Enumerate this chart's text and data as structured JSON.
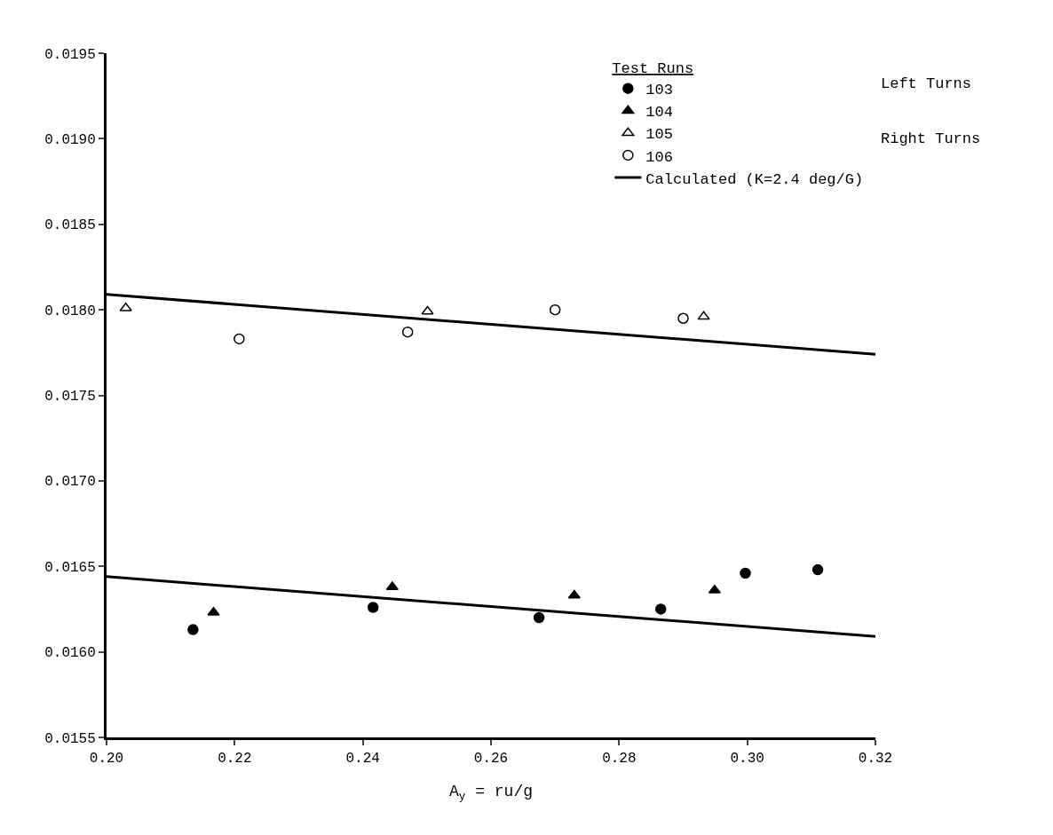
{
  "chart_data": {
    "type": "scatter",
    "xlabel": "A$_{y}$ = ru/g",
    "legend_title": "Test Runs",
    "legend": "top right",
    "grid": false,
    "xlim": [
      0.2,
      0.32
    ],
    "ylim": [
      0.0155,
      0.0195
    ],
    "xticks": [
      {
        "value": 0.2,
        "label": "0.20"
      },
      {
        "value": 0.22,
        "label": "0.22"
      },
      {
        "value": 0.24,
        "label": "0.24"
      },
      {
        "value": 0.26,
        "label": "0.26"
      },
      {
        "value": 0.28,
        "label": "0.28"
      },
      {
        "value": 0.3,
        "label": "0.30"
      },
      {
        "value": 0.32,
        "label": "0.32"
      }
    ],
    "yticks": [
      {
        "value": 0.0155,
        "label": "0.0155"
      },
      {
        "value": 0.016,
        "label": "0.0160"
      },
      {
        "value": 0.0165,
        "label": "0.0165"
      },
      {
        "value": 0.017,
        "label": "0.0170"
      },
      {
        "value": 0.0175,
        "label": "0.0175"
      },
      {
        "value": 0.018,
        "label": "0.0180"
      },
      {
        "value": 0.0185,
        "label": "0.0185"
      },
      {
        "value": 0.019,
        "label": "0.0190"
      },
      {
        "value": 0.0195,
        "label": "0.0195"
      }
    ],
    "annotations": [
      "Left Turns",
      "Right Turns"
    ],
    "series": [
      {
        "name": "103",
        "color": "#000000",
        "marker": "circle",
        "x": [
          0.2135,
          0.2416,
          0.2675,
          0.2865,
          0.2997,
          0.311
        ],
        "values": [
          0.01613,
          0.01626,
          0.0162,
          0.01625,
          0.01646,
          0.01648
        ]
      },
      {
        "name": "104",
        "color": "#000000",
        "marker": "triangle",
        "x": [
          0.2167,
          0.2446,
          0.273,
          0.2949
        ],
        "values": [
          0.01623,
          0.01638,
          0.01633,
          0.01636
        ]
      },
      {
        "name": "105",
        "color": "#000000",
        "marker": "triangle-open",
        "x": [
          0.203,
          0.2501,
          0.2932
        ],
        "values": [
          0.01801,
          0.01799,
          0.01796
        ]
      },
      {
        "name": "106",
        "color": "#000000",
        "marker": "circle-open",
        "x": [
          0.2207,
          0.247,
          0.27,
          0.29
        ],
        "values": [
          0.01783,
          0.01787,
          0.018,
          0.01795
        ]
      },
      {
        "name": "Calculated (K=2.4 deg/G)",
        "type": "line",
        "color": "#000000",
        "marker": "none",
        "line_style": "solid",
        "x": [
          0.2,
          0.32
        ],
        "values": [
          0.01809,
          0.01774
        ]
      },
      {
        "type": "line",
        "color": "#000000",
        "marker": "none",
        "line_style": "solid",
        "x": [
          0.2,
          0.32
        ],
        "values": [
          0.01644,
          0.01609
        ]
      }
    ]
  }
}
